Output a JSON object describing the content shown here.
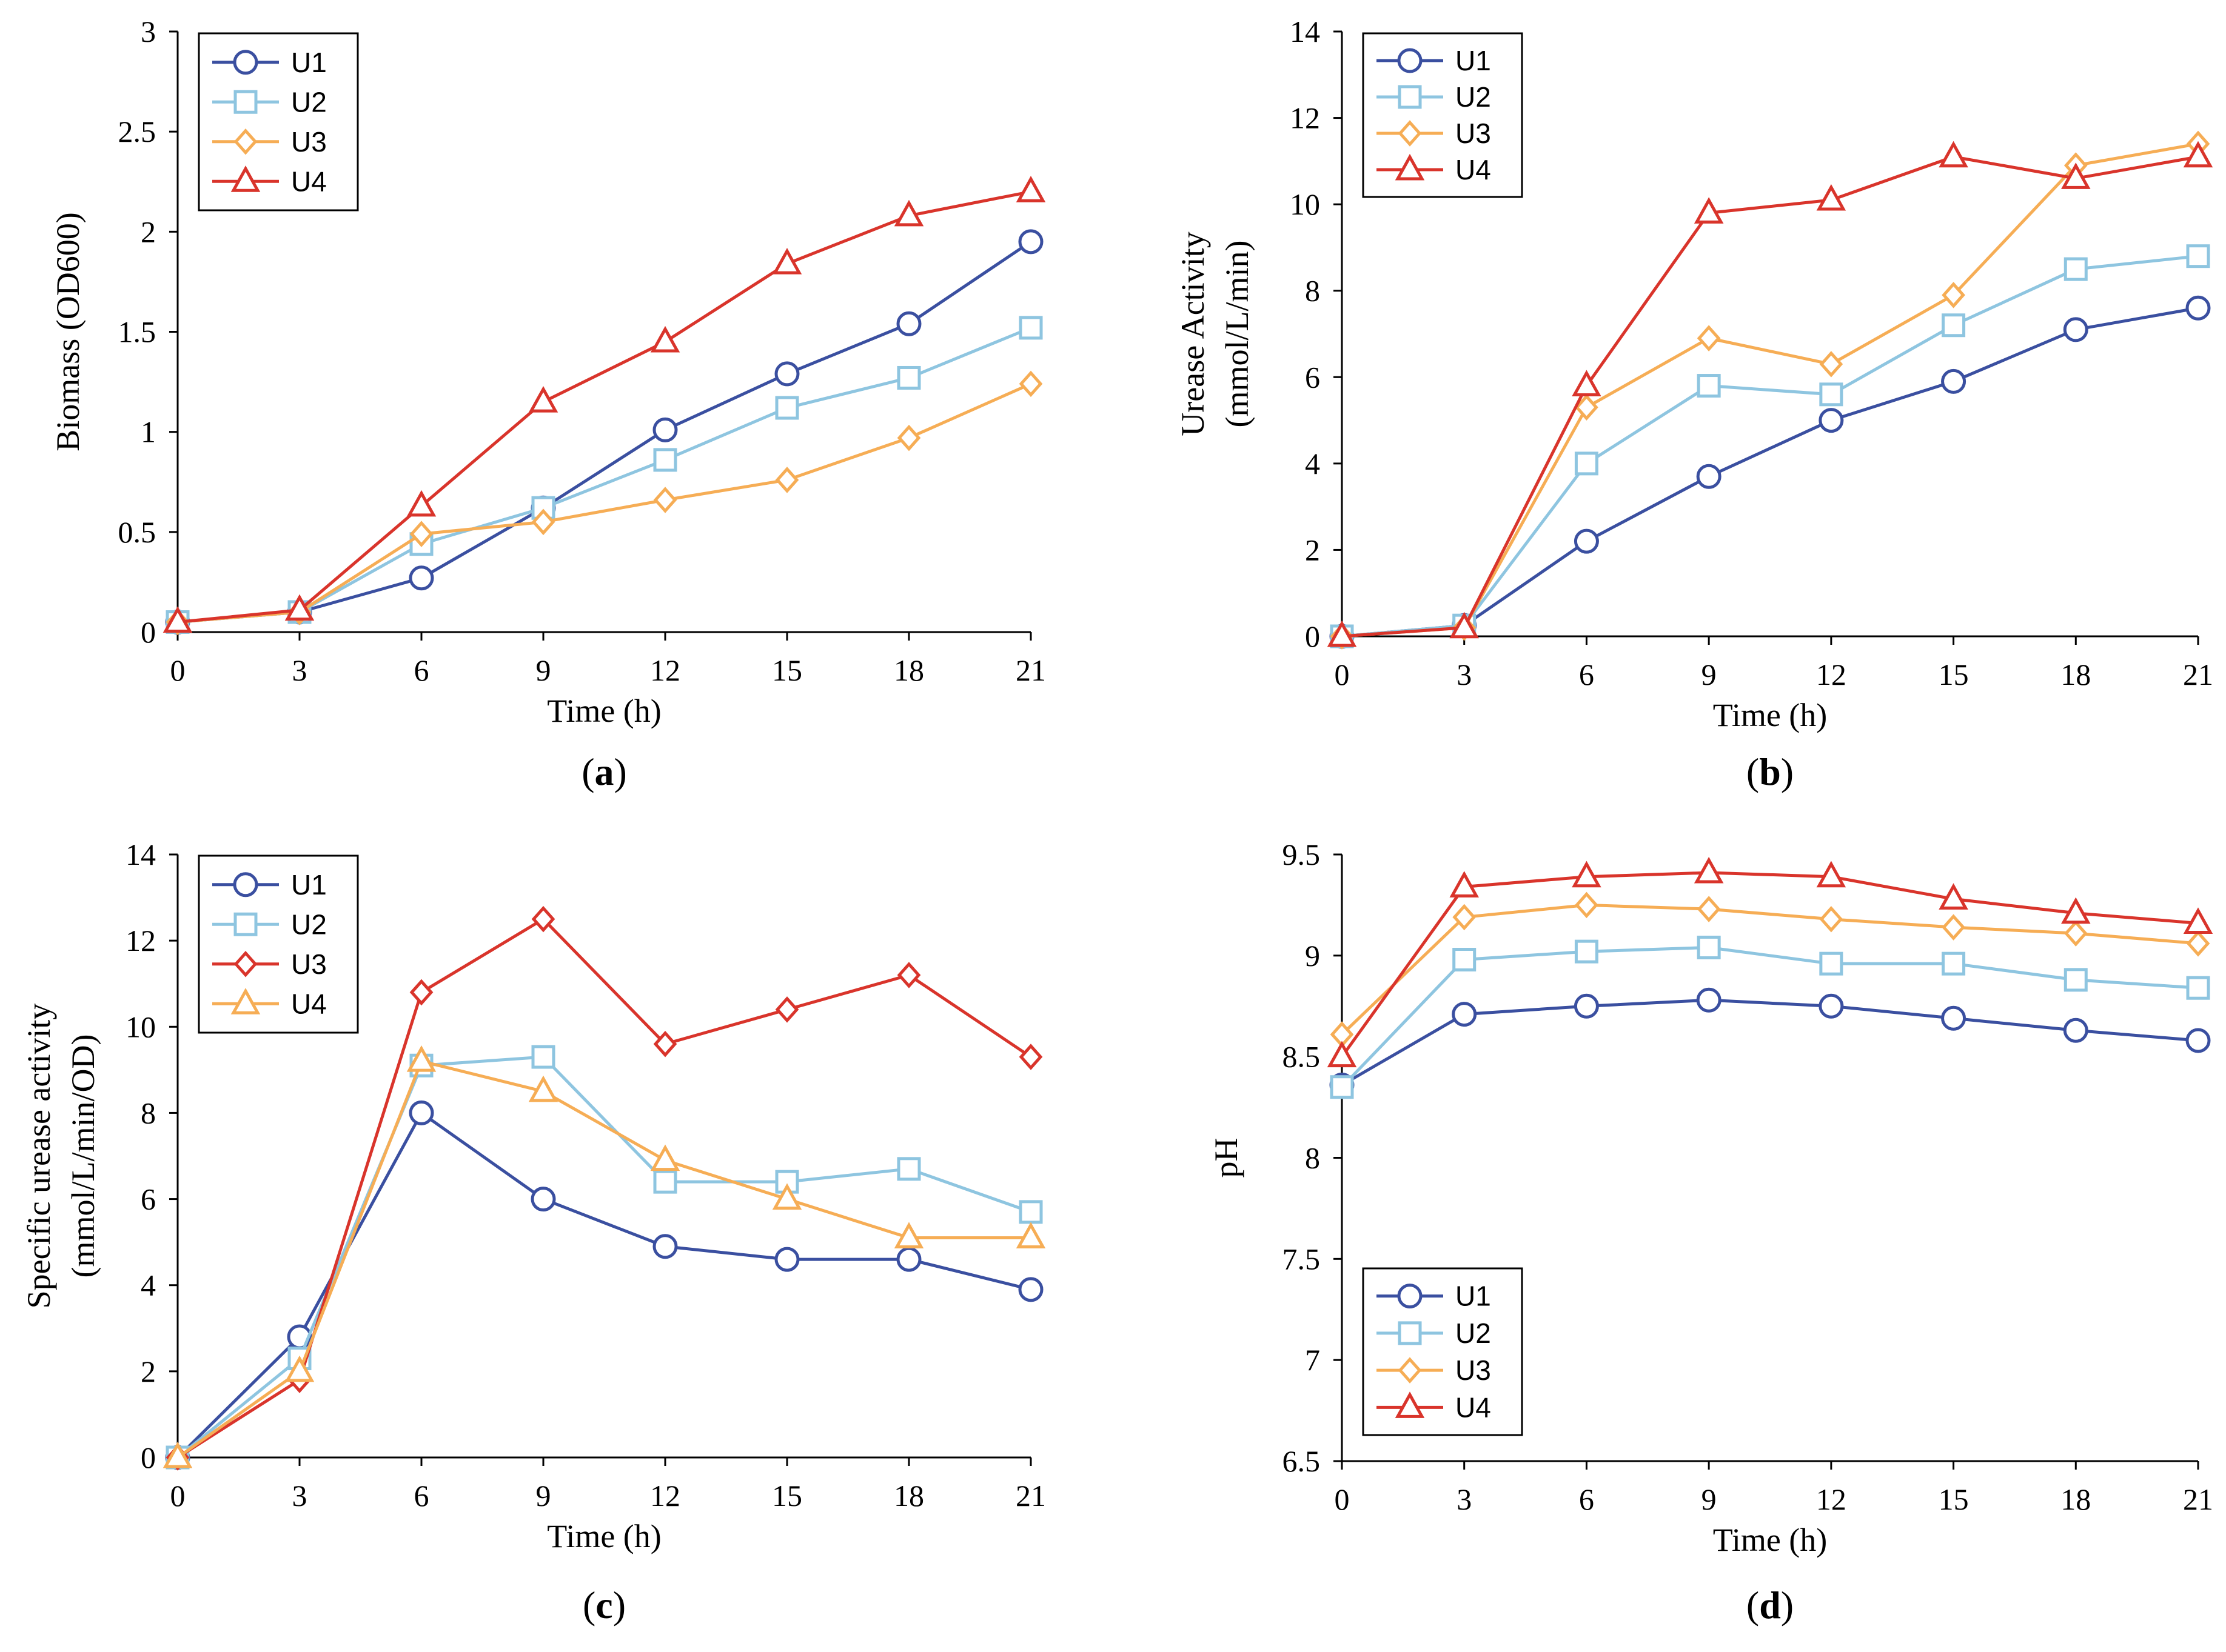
{
  "chart_data": [
    {
      "type": "line",
      "id": "a",
      "panel_label": {
        "open": "(",
        "letter": "a",
        "close": ")"
      },
      "xlabel": "Time (h)",
      "ylabel": [
        "Biomass (OD600)"
      ],
      "x": [
        0,
        3,
        6,
        9,
        12,
        15,
        18,
        21
      ],
      "xticks": [
        "0",
        "3",
        "6",
        "9",
        "12",
        "15",
        "18",
        "21"
      ],
      "ylim": [
        0,
        3
      ],
      "yticks": [
        "0",
        "0.5",
        "1",
        "1.5",
        "2",
        "2.5",
        "3"
      ],
      "yticks_values": [
        0,
        0.5,
        1,
        1.5,
        2,
        2.5,
        3
      ],
      "legend_position": "top-left",
      "series": [
        {
          "name": "U1",
          "marker": "circle",
          "color": "#3a4fa0",
          "values": [
            0.05,
            0.1,
            0.27,
            0.62,
            1.01,
            1.29,
            1.54,
            1.95
          ]
        },
        {
          "name": "U2",
          "marker": "square",
          "color": "#8ec5e0",
          "values": [
            0.05,
            0.1,
            0.44,
            0.62,
            0.86,
            1.12,
            1.27,
            1.52
          ]
        },
        {
          "name": "U3",
          "marker": "diamond",
          "color": "#f6ad55",
          "values": [
            0.05,
            0.1,
            0.49,
            0.55,
            0.66,
            0.76,
            0.97,
            1.24
          ]
        },
        {
          "name": "U4",
          "marker": "triangle",
          "color": "#d9342b",
          "values": [
            0.05,
            0.11,
            0.63,
            1.15,
            1.45,
            1.84,
            2.08,
            2.2
          ]
        }
      ]
    },
    {
      "type": "line",
      "id": "b",
      "panel_label": {
        "open": "(",
        "letter": "b",
        "close": ")"
      },
      "xlabel": "Time (h)",
      "ylabel": [
        "Urease Activity",
        "(mmol/L/min)"
      ],
      "x": [
        0,
        3,
        6,
        9,
        12,
        15,
        18,
        21
      ],
      "xticks": [
        "0",
        "3",
        "6",
        "9",
        "12",
        "15",
        "18",
        "21"
      ],
      "ylim": [
        0,
        14
      ],
      "yticks": [
        "0",
        "2",
        "4",
        "6",
        "8",
        "10",
        "12",
        "14"
      ],
      "yticks_values": [
        0,
        2,
        4,
        6,
        8,
        10,
        12,
        14
      ],
      "legend_position": "top-left",
      "series": [
        {
          "name": "U1",
          "marker": "circle",
          "color": "#3a4fa0",
          "values": [
            0,
            0.25,
            2.2,
            3.7,
            5.0,
            5.9,
            7.1,
            7.6
          ]
        },
        {
          "name": "U2",
          "marker": "square",
          "color": "#8ec5e0",
          "values": [
            0,
            0.25,
            4.0,
            5.8,
            5.6,
            7.2,
            8.5,
            8.8
          ]
        },
        {
          "name": "U3",
          "marker": "diamond",
          "color": "#f6ad55",
          "values": [
            0,
            0.2,
            5.3,
            6.9,
            6.3,
            7.9,
            10.9,
            11.4
          ]
        },
        {
          "name": "U4",
          "marker": "triangle",
          "color": "#d9342b",
          "values": [
            0,
            0.2,
            5.8,
            9.8,
            10.1,
            11.1,
            10.6,
            11.1
          ]
        }
      ]
    },
    {
      "type": "line",
      "id": "c",
      "panel_label": {
        "open": "(",
        "letter": "c",
        "close": ")"
      },
      "xlabel": "Time (h)",
      "ylabel": [
        "Specific urease activity",
        "(mmol/L/min/OD)"
      ],
      "x": [
        0,
        3,
        6,
        9,
        12,
        15,
        18,
        21
      ],
      "xticks": [
        "0",
        "3",
        "6",
        "9",
        "12",
        "15",
        "18",
        "21"
      ],
      "ylim": [
        0,
        14
      ],
      "yticks": [
        "0",
        "2",
        "4",
        "6",
        "8",
        "10",
        "12",
        "14"
      ],
      "yticks_values": [
        0,
        2,
        4,
        6,
        8,
        10,
        12,
        14
      ],
      "legend_position": "top-left",
      "series": [
        {
          "name": "U1",
          "marker": "circle",
          "color": "#3a4fa0",
          "values": [
            0,
            2.8,
            8.0,
            6.0,
            4.9,
            4.6,
            4.6,
            3.9
          ]
        },
        {
          "name": "U2",
          "marker": "square",
          "color": "#8ec5e0",
          "values": [
            0,
            2.3,
            9.1,
            9.3,
            6.4,
            6.4,
            6.7,
            5.7
          ]
        },
        {
          "name": "U3",
          "marker": "diamond",
          "color": "#d9342b",
          "values": [
            0,
            1.8,
            10.8,
            12.5,
            9.6,
            10.4,
            11.2,
            9.3
          ]
        },
        {
          "name": "U4",
          "marker": "triangle",
          "color": "#f6ad55",
          "values": [
            0,
            2.0,
            9.2,
            8.5,
            6.9,
            6.0,
            5.1,
            5.1
          ]
        }
      ]
    },
    {
      "type": "line",
      "id": "d",
      "panel_label": {
        "open": "(",
        "letter": "d",
        "close": ")"
      },
      "xlabel": "Time (h)",
      "ylabel": [
        "pH"
      ],
      "x": [
        0,
        3,
        6,
        9,
        12,
        15,
        18,
        21
      ],
      "xticks": [
        "0",
        "3",
        "6",
        "9",
        "12",
        "15",
        "18",
        "21"
      ],
      "ylim": [
        6.5,
        9.5
      ],
      "yticks": [
        "6.5",
        "7",
        "7.5",
        "8",
        "8.5",
        "9",
        "9.5"
      ],
      "yticks_values": [
        6.5,
        7,
        7.5,
        8,
        8.5,
        9,
        9.5
      ],
      "legend_position": "bottom-left",
      "series": [
        {
          "name": "U1",
          "marker": "circle",
          "color": "#3a4fa0",
          "values": [
            8.36,
            8.71,
            8.75,
            8.78,
            8.75,
            8.69,
            8.63,
            8.58
          ]
        },
        {
          "name": "U2",
          "marker": "square",
          "color": "#8ec5e0",
          "values": [
            8.35,
            8.98,
            9.02,
            9.04,
            8.96,
            8.96,
            8.88,
            8.84
          ]
        },
        {
          "name": "U3",
          "marker": "diamond",
          "color": "#f6ad55",
          "values": [
            8.61,
            9.19,
            9.25,
            9.23,
            9.18,
            9.14,
            9.11,
            9.06
          ]
        },
        {
          "name": "U4",
          "marker": "triangle",
          "color": "#d9342b",
          "values": [
            8.5,
            9.34,
            9.39,
            9.41,
            9.39,
            9.28,
            9.21,
            9.16
          ]
        }
      ]
    }
  ]
}
